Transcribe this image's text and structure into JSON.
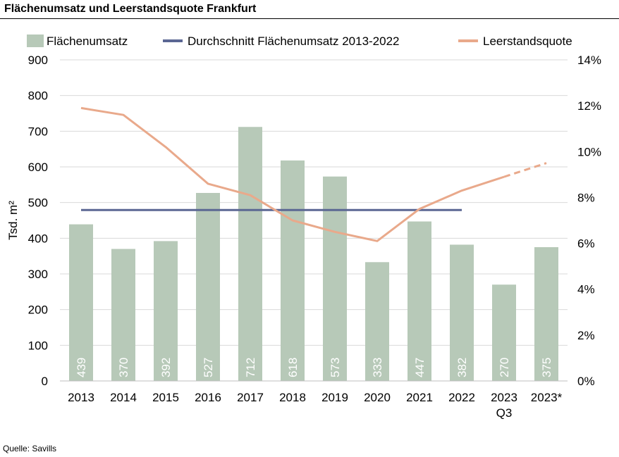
{
  "chart_data": {
    "type": "bar",
    "title": "Flächenumsatz und Leerstandsquote Frankfurt",
    "ylabel": "Tsd. m²",
    "ylim": [
      0,
      900
    ],
    "yticks": [
      "0",
      "100",
      "200",
      "300",
      "400",
      "500",
      "600",
      "700",
      "800",
      "900"
    ],
    "y2lim": [
      0,
      14
    ],
    "y2ticks": [
      "0%",
      "2%",
      "4%",
      "6%",
      "8%",
      "10%",
      "12%",
      "14%"
    ],
    "categories": [
      "2013",
      "2014",
      "2015",
      "2016",
      "2017",
      "2018",
      "2019",
      "2020",
      "2021",
      "2022",
      "2023 Q3",
      "2023*"
    ],
    "category_labels": [
      [
        "2013"
      ],
      [
        "2014"
      ],
      [
        "2015"
      ],
      [
        "2016"
      ],
      [
        "2017"
      ],
      [
        "2018"
      ],
      [
        "2019"
      ],
      [
        "2020"
      ],
      [
        "2021"
      ],
      [
        "2022"
      ],
      [
        "2023",
        "Q3"
      ],
      [
        "2023*"
      ]
    ],
    "grid": true,
    "legend": "top",
    "series": [
      {
        "name": "Flächenumsatz",
        "kind": "bar",
        "axis": "left",
        "color": "#b7c9b8",
        "values": [
          439,
          370,
          392,
          527,
          712,
          618,
          573,
          333,
          447,
          382,
          270,
          375
        ],
        "labels": [
          "439",
          "370",
          "392",
          "527",
          "712",
          "618",
          "573",
          "333",
          "447",
          "382",
          "270",
          "375"
        ]
      },
      {
        "name": "Durchschnitt Flächenumsatz 2013-2022",
        "kind": "line",
        "axis": "left",
        "color": "#5b6793",
        "values": [
          479,
          479,
          479,
          479,
          479,
          479,
          479,
          479,
          479,
          479,
          null,
          null
        ]
      },
      {
        "name": "Leerstandsquote",
        "kind": "line",
        "axis": "right",
        "color": "#e9a98b",
        "values": [
          11.9,
          11.6,
          10.2,
          8.6,
          8.1,
          7.0,
          6.5,
          6.1,
          7.5,
          8.3,
          8.9,
          9.5
        ],
        "dashed_from_index": 10
      }
    ]
  },
  "source": "Quelle: Savills"
}
